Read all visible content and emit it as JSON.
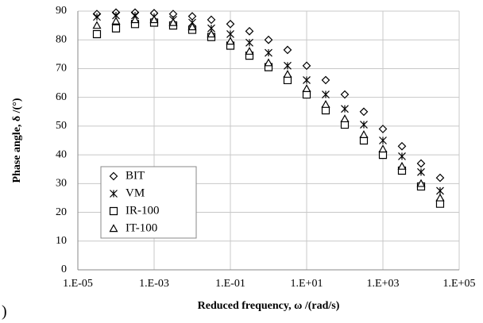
{
  "chart_data": {
    "type": "scatter",
    "xlabel": "Reduced frequency, ω /(rad/s)",
    "ylabel": "Phase angle, δ /(°)",
    "annotation": ")",
    "x": [
      3.16e-05,
      0.0001,
      0.000316,
      0.001,
      0.00316,
      0.01,
      0.0316,
      0.1,
      0.316,
      1,
      3.16,
      10,
      31.6,
      100,
      316,
      1000,
      3160,
      10000,
      31600
    ],
    "series": [
      {
        "name": "BIT",
        "color": "#000000",
        "marker": "diamond",
        "values": [
          89,
          89.5,
          89.5,
          89.3,
          89,
          88.2,
          87,
          85.5,
          83,
          80,
          76.5,
          71,
          66,
          61,
          55,
          49,
          43,
          37,
          32
        ]
      },
      {
        "name": "VM",
        "color": "#000000",
        "marker": "asterisk",
        "values": [
          88,
          88.5,
          88.5,
          88,
          87,
          86,
          84,
          82,
          79,
          75.5,
          71,
          66,
          61,
          56,
          50.5,
          45,
          39.5,
          34,
          27.5
        ]
      },
      {
        "name": "IR-100",
        "color": "#000000",
        "marker": "square",
        "values": [
          82,
          84,
          85.5,
          86,
          85,
          83.5,
          81,
          78,
          74.5,
          70.5,
          66,
          61,
          55.5,
          50.5,
          45,
          40,
          34.5,
          29,
          23
        ]
      },
      {
        "name": "IT-100",
        "color": "#000000",
        "marker": "triangle",
        "values": [
          85,
          86.5,
          87,
          87,
          86,
          84.5,
          82,
          79.5,
          76,
          72,
          68,
          63,
          57.5,
          52.5,
          47,
          42,
          36,
          30,
          25
        ]
      }
    ],
    "xscale": "log",
    "xlim": [
      1e-05,
      100000
    ],
    "xticks": [
      {
        "value": 1e-05,
        "label": "1.E-05"
      },
      {
        "value": 0.001,
        "label": "1.E-03"
      },
      {
        "value": 0.1,
        "label": "1.E-01"
      },
      {
        "value": 10,
        "label": "1.E+01"
      },
      {
        "value": 1000,
        "label": "1.E+03"
      },
      {
        "value": 100000,
        "label": "1.E+05"
      }
    ],
    "ylim": [
      0,
      90
    ],
    "yticks": [
      0,
      10,
      20,
      30,
      40,
      50,
      60,
      70,
      80,
      90
    ],
    "grid": true,
    "legend": "lower left"
  }
}
